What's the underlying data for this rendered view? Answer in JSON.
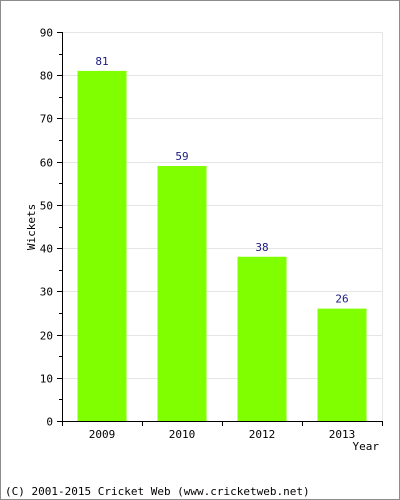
{
  "chart_data": {
    "type": "bar",
    "categories": [
      "2009",
      "2010",
      "2012",
      "2013"
    ],
    "values": [
      81,
      59,
      38,
      26
    ],
    "xlabel": "Year",
    "ylabel": "Wickets",
    "ylim": [
      0,
      90
    ],
    "yticks": [
      0,
      10,
      20,
      30,
      40,
      50,
      60,
      70,
      80,
      90
    ],
    "grid": true,
    "bar_color": "#7fff00",
    "label_color": "#1a1a80"
  },
  "footer": {
    "copyright": "(C) 2001-2015 Cricket Web (www.cricketweb.net)"
  }
}
